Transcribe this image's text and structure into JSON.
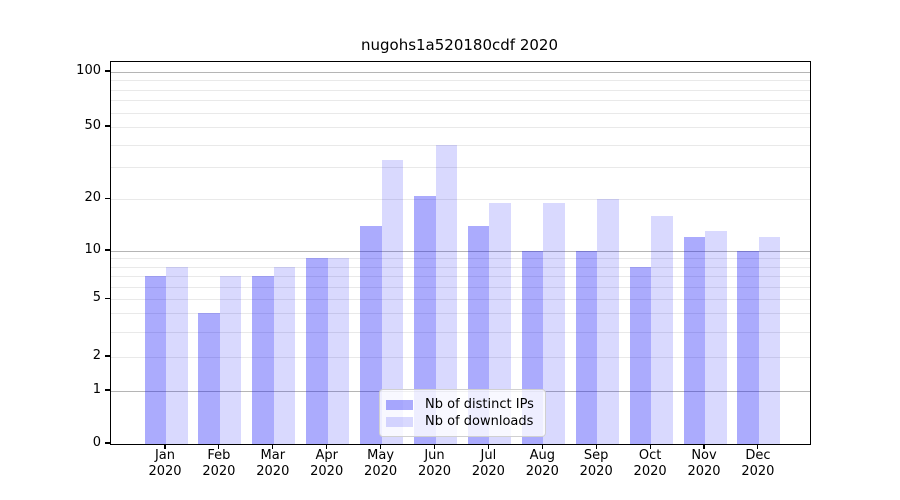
{
  "chart_data": {
    "type": "bar",
    "title": "nugohs1a520180cdf 2020",
    "categories": [
      "Jan",
      "Feb",
      "Mar",
      "Apr",
      "May",
      "Jun",
      "Jul",
      "Aug",
      "Sep",
      "Oct",
      "Nov",
      "Dec"
    ],
    "category_year": "2020",
    "series": [
      {
        "name": "Nb of distinct IPs",
        "color": "#0a0afa",
        "alpha": 0.34,
        "values": [
          7,
          4,
          7,
          9,
          14,
          21,
          14,
          10,
          10,
          8,
          12,
          10
        ]
      },
      {
        "name": "Nb of downloads",
        "color": "#0a0afa",
        "alpha": 0.155,
        "values": [
          8,
          7,
          8,
          9,
          33,
          40,
          19,
          19,
          20,
          16,
          13,
          12
        ]
      }
    ],
    "yscale": "log (0 shown at baseline)",
    "y_ticks": [
      0,
      1,
      2,
      5,
      10,
      20,
      50,
      100
    ],
    "y_major_gridlines": [
      1,
      10,
      100
    ],
    "y_minor_gridlines": [
      2,
      3,
      4,
      5,
      6,
      7,
      8,
      9,
      20,
      30,
      40,
      50,
      60,
      70,
      80,
      90
    ],
    "grid": true,
    "legend_position": "lower center",
    "colors": {
      "axis": "#000000",
      "grid_minor": "#e9e9e9",
      "grid_major": "#b5b5b5"
    }
  }
}
